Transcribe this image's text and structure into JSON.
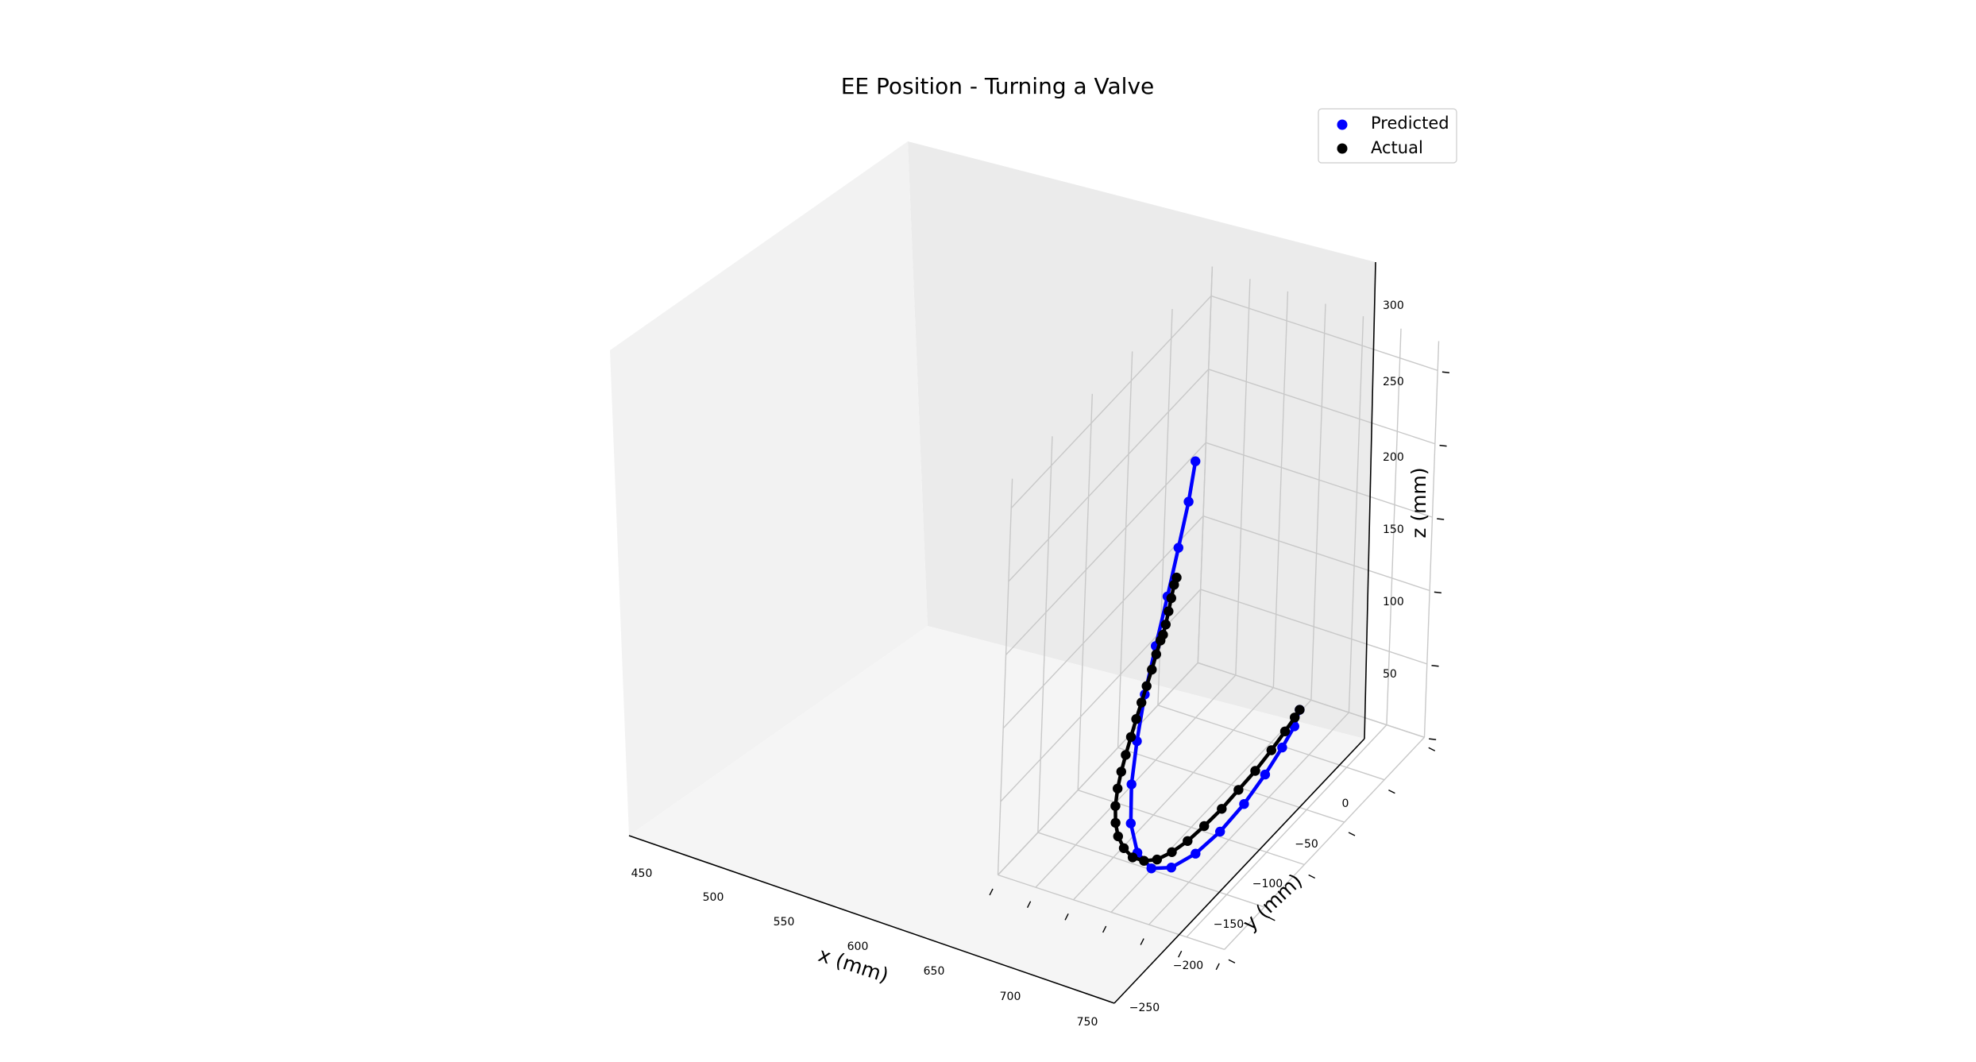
{
  "chart_data": {
    "type": "line3d",
    "title": "EE Position - Turning a Valve",
    "xlabel": "x (mm)",
    "ylabel": "y (mm)",
    "zlabel": "z (mm)",
    "x_ticks": [
      "450",
      "500",
      "550",
      "600",
      "650",
      "700",
      "750"
    ],
    "y_ticks": [
      "−250",
      "−200",
      "−150",
      "−100",
      "−50",
      "0"
    ],
    "z_ticks": [
      "50",
      "100",
      "150",
      "200",
      "250",
      "300"
    ],
    "grid": true,
    "legend": "top-right",
    "series": [
      {
        "name": "Predicted",
        "color": "#0000ff",
        "points": [
          {
            "x": 558,
            "y": -120,
            "z": 275
          },
          {
            "x": 556,
            "y": -125,
            "z": 250
          },
          {
            "x": 552,
            "y": -132,
            "z": 222
          },
          {
            "x": 547,
            "y": -139,
            "z": 192
          },
          {
            "x": 542,
            "y": -147,
            "z": 162
          },
          {
            "x": 538,
            "y": -155,
            "z": 133
          },
          {
            "x": 537,
            "y": -162,
            "z": 105
          },
          {
            "x": 539,
            "y": -169,
            "z": 80
          },
          {
            "x": 546,
            "y": -175,
            "z": 58
          },
          {
            "x": 559,
            "y": -178,
            "z": 42
          },
          {
            "x": 576,
            "y": -176,
            "z": 33
          },
          {
            "x": 594,
            "y": -168,
            "z": 32
          },
          {
            "x": 612,
            "y": -155,
            "z": 37
          },
          {
            "x": 628,
            "y": -140,
            "z": 46
          },
          {
            "x": 642,
            "y": -124,
            "z": 58
          },
          {
            "x": 654,
            "y": -110,
            "z": 72
          },
          {
            "x": 663,
            "y": -98,
            "z": 85
          },
          {
            "x": 670,
            "y": -90,
            "z": 96
          },
          {
            "x": 673,
            "y": -87,
            "z": 106
          }
        ]
      },
      {
        "name": "Actual",
        "color": "#000000",
        "points": [
          {
            "x": 549,
            "y": -130,
            "z": 200
          },
          {
            "x": 548,
            "y": -132,
            "z": 196
          },
          {
            "x": 547,
            "y": -134,
            "z": 188
          },
          {
            "x": 546,
            "y": -136,
            "z": 180
          },
          {
            "x": 545,
            "y": -138,
            "z": 172
          },
          {
            "x": 544,
            "y": -140,
            "z": 166
          },
          {
            "x": 543,
            "y": -142,
            "z": 163
          },
          {
            "x": 541,
            "y": -145,
            "z": 155
          },
          {
            "x": 539,
            "y": -148,
            "z": 146
          },
          {
            "x": 536,
            "y": -151,
            "z": 136
          },
          {
            "x": 533,
            "y": -154,
            "z": 126
          },
          {
            "x": 530,
            "y": -157,
            "z": 116
          },
          {
            "x": 527,
            "y": -160,
            "z": 105
          },
          {
            "x": 524,
            "y": -163,
            "z": 94
          },
          {
            "x": 522,
            "y": -166,
            "z": 84
          },
          {
            "x": 521,
            "y": -169,
            "z": 74
          },
          {
            "x": 522,
            "y": -172,
            "z": 64
          },
          {
            "x": 526,
            "y": -175,
            "z": 55
          },
          {
            "x": 532,
            "y": -177,
            "z": 48
          },
          {
            "x": 541,
            "y": -178,
            "z": 42
          },
          {
            "x": 552,
            "y": -177,
            "z": 37
          },
          {
            "x": 564,
            "y": -174,
            "z": 35
          },
          {
            "x": 576,
            "y": -169,
            "z": 35
          },
          {
            "x": 588,
            "y": -162,
            "z": 38
          },
          {
            "x": 600,
            "y": -154,
            "z": 43
          },
          {
            "x": 612,
            "y": -145,
            "z": 50
          },
          {
            "x": 624,
            "y": -135,
            "z": 58
          },
          {
            "x": 635,
            "y": -125,
            "z": 67
          },
          {
            "x": 646,
            "y": -115,
            "z": 76
          },
          {
            "x": 656,
            "y": -105,
            "z": 86
          },
          {
            "x": 664,
            "y": -96,
            "z": 95
          },
          {
            "x": 670,
            "y": -90,
            "z": 102
          },
          {
            "x": 673,
            "y": -87,
            "z": 106
          }
        ]
      }
    ]
  }
}
